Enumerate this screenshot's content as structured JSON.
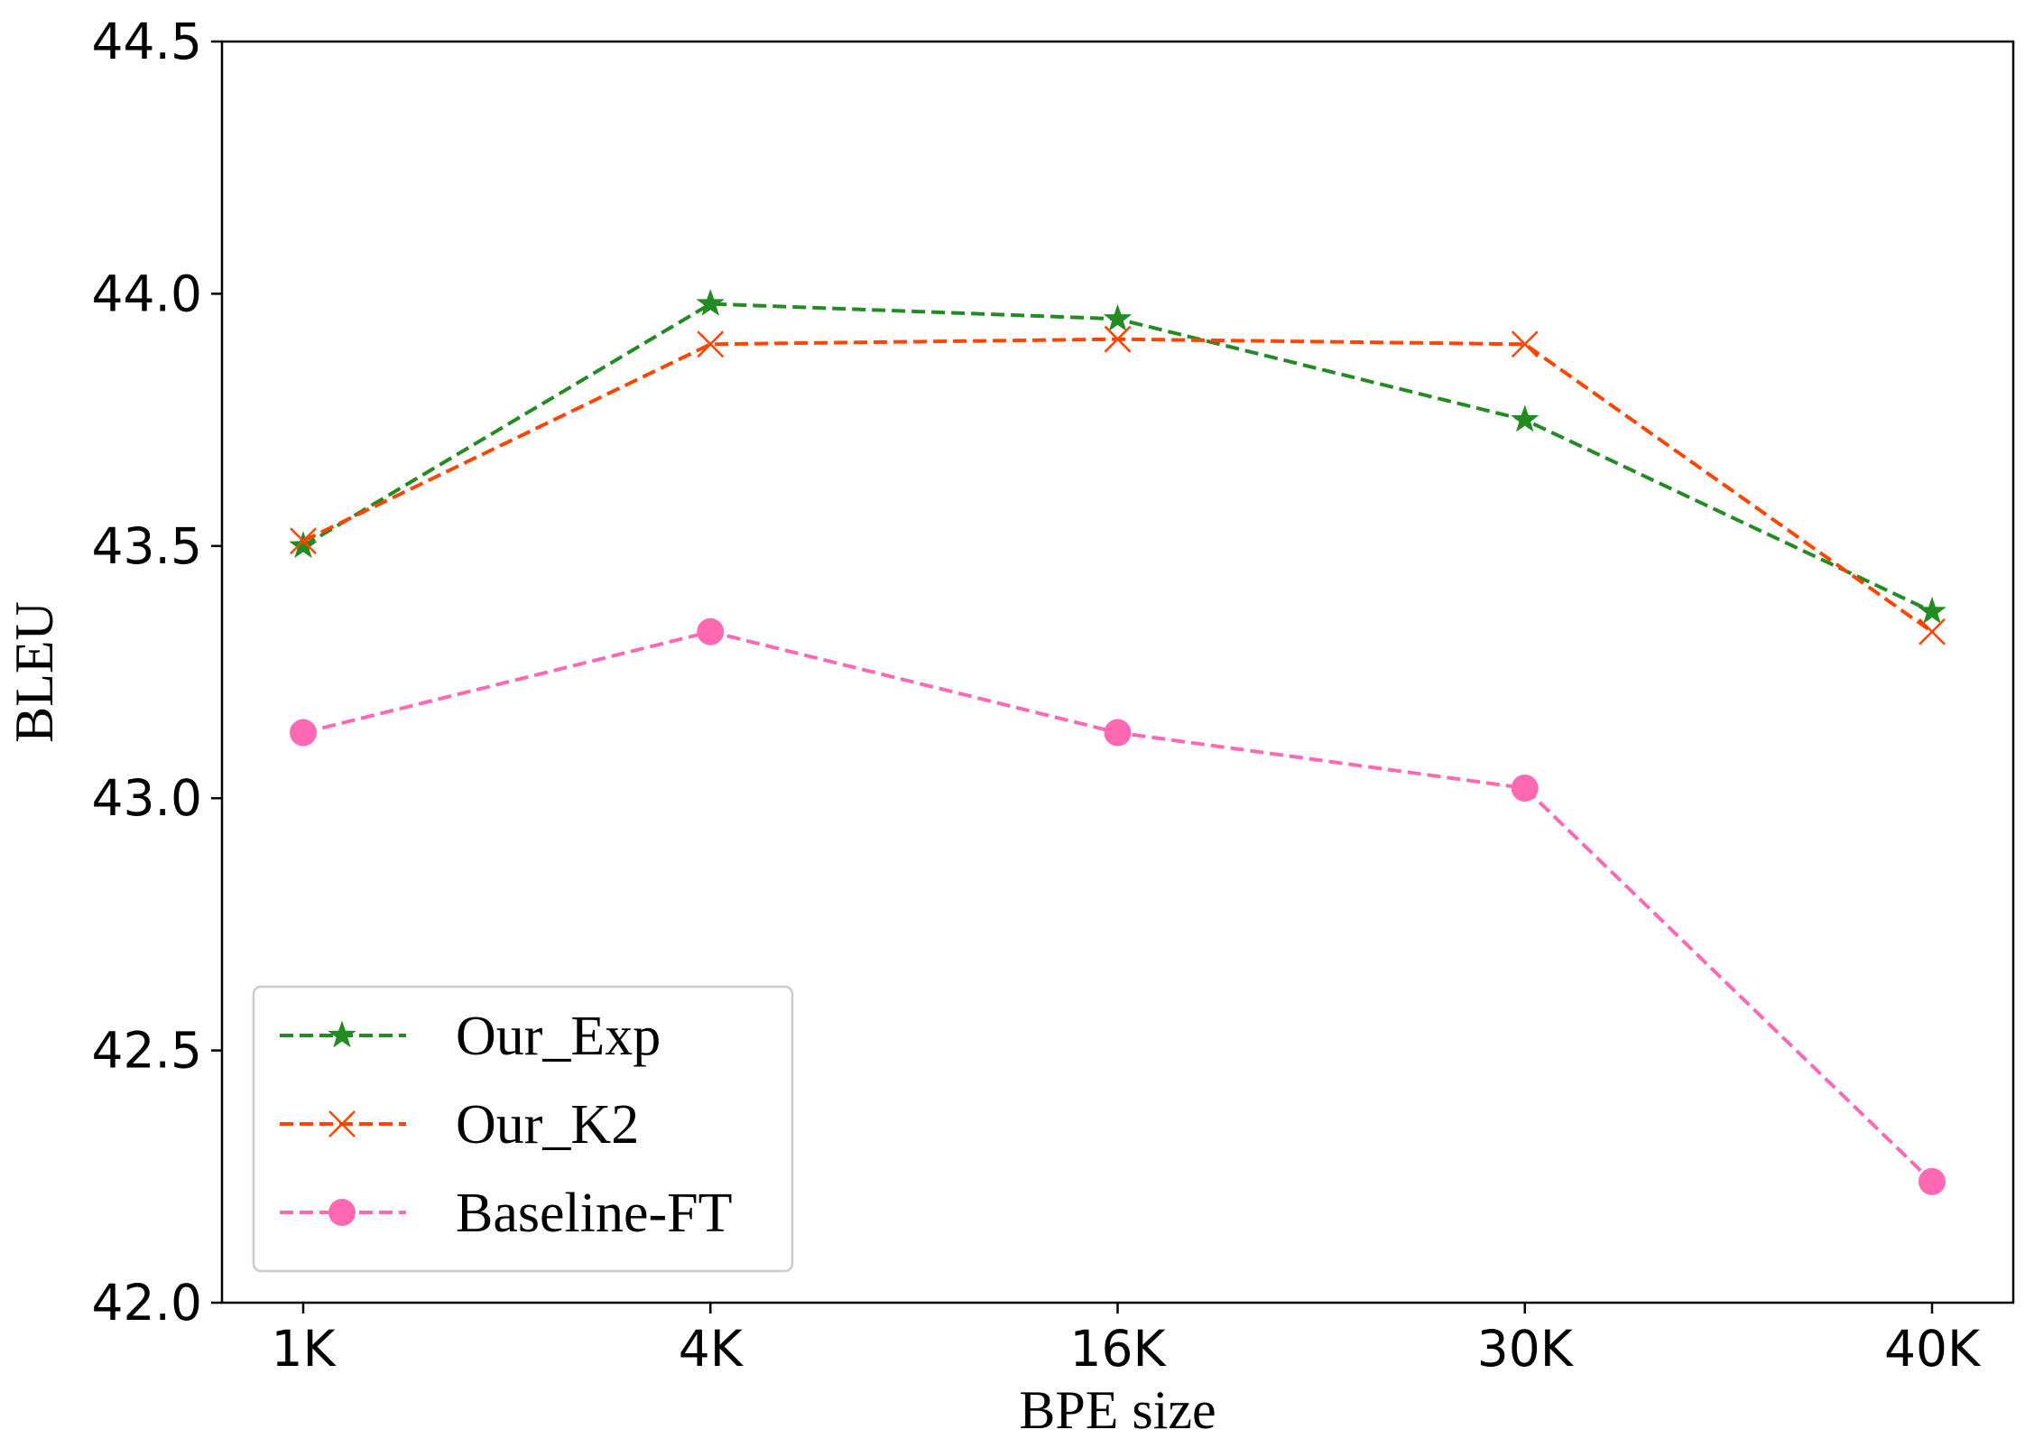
{
  "chart_data": {
    "type": "line",
    "title": "",
    "xlabel": "BPE size",
    "ylabel": "BLEU",
    "categories": [
      "1K",
      "4K",
      "16K",
      "30K",
      "40K"
    ],
    "ylim": [
      42.0,
      44.5
    ],
    "yticks": [
      42.0,
      42.5,
      43.0,
      43.5,
      44.0,
      44.5
    ],
    "ytick_labels": [
      "42.0",
      "42.5",
      "43.0",
      "43.5",
      "44.0",
      "44.5"
    ],
    "grid": false,
    "legend": "lower-left",
    "series": [
      {
        "name": "Our_Exp",
        "values": [
          43.5,
          43.98,
          43.95,
          43.75,
          43.37
        ],
        "color": "#228b22",
        "marker": "star",
        "linestyle": "dashed"
      },
      {
        "name": "Our_K2",
        "values": [
          43.51,
          43.9,
          43.91,
          43.9,
          43.33
        ],
        "color": "#ff4500",
        "marker": "x",
        "linestyle": "dashed"
      },
      {
        "name": "Baseline-FT",
        "values": [
          43.13,
          43.33,
          43.13,
          43.02,
          42.24
        ],
        "color": "#ff69b4",
        "marker": "circle",
        "linestyle": "dashed"
      }
    ]
  }
}
